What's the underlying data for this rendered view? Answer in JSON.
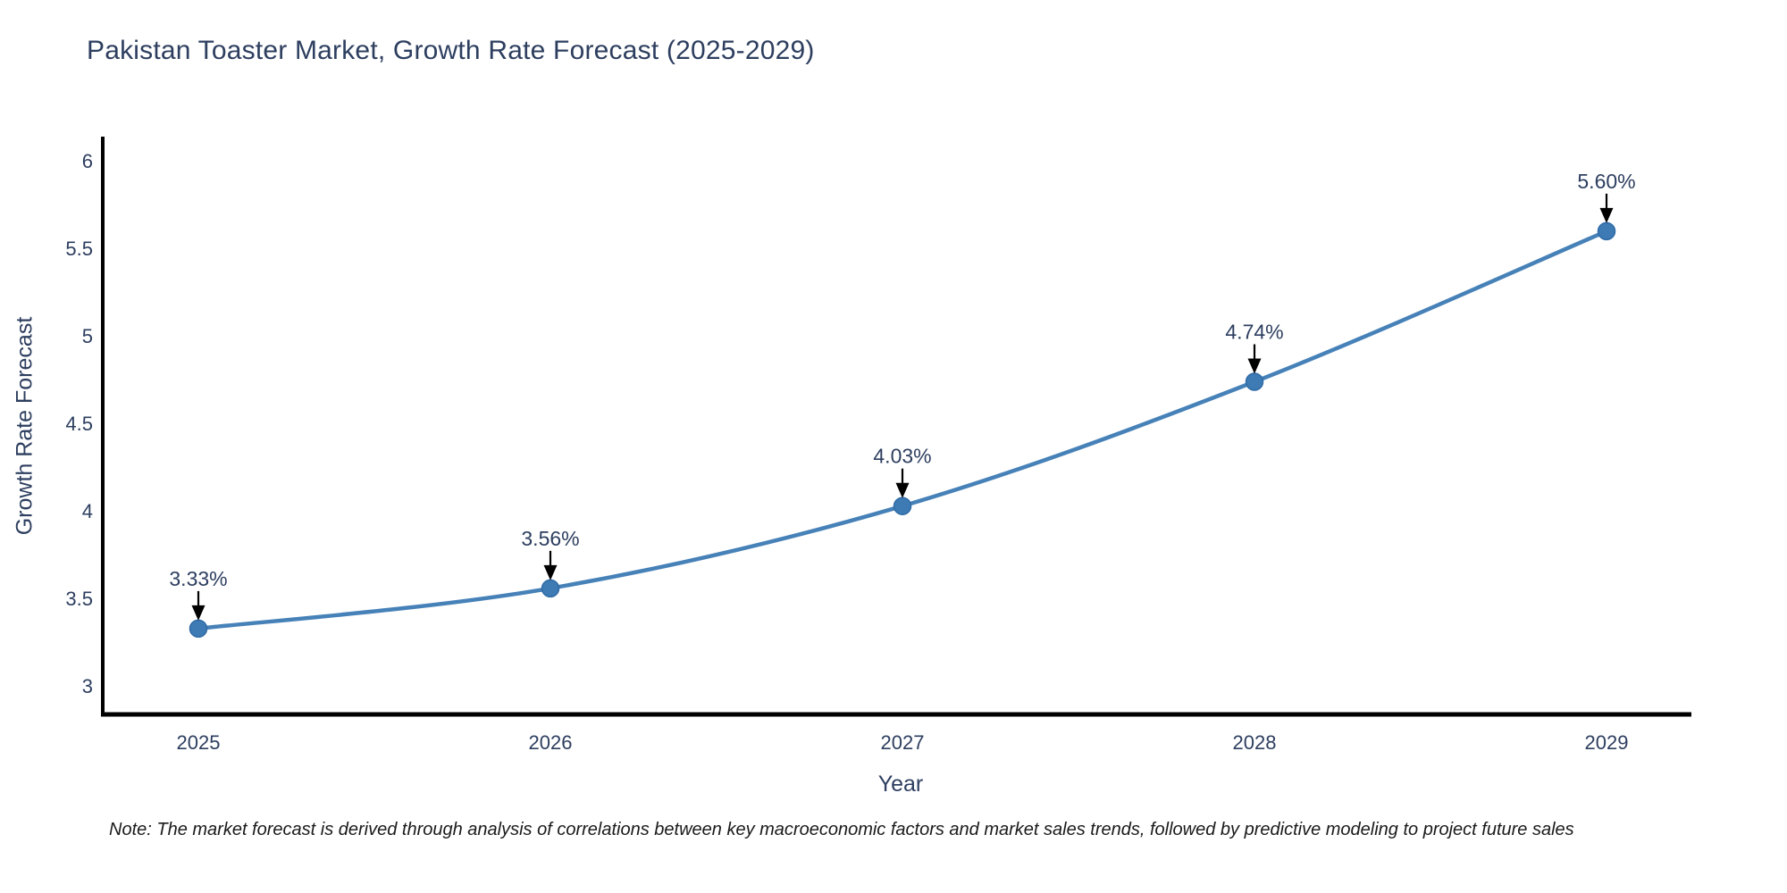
{
  "note": "Note: The market forecast is derived through analysis of correlations between key macroeconomic factors and market sales trends, followed by predictive modeling to project future sales",
  "chart_data": {
    "type": "line",
    "title": "Pakistan Toaster Market, Growth Rate Forecast (2025-2029)",
    "x": [
      "2025",
      "2026",
      "2027",
      "2028",
      "2029"
    ],
    "values": [
      3.33,
      3.56,
      4.03,
      4.74,
      5.6
    ],
    "point_labels": [
      "3.33%",
      "3.56%",
      "4.03%",
      "4.74%",
      "5.60%"
    ],
    "xlabel": "Year",
    "ylabel": "Growth Rate Forecast",
    "y_ticks": [
      "3",
      "3.5",
      "4",
      "4.5",
      "5",
      "5.5",
      "6"
    ],
    "y_tick_values": [
      3,
      3.5,
      4,
      4.5,
      5,
      5.5,
      6
    ],
    "ylim": [
      2.84,
      6.14
    ],
    "curve": "spline",
    "grid": false,
    "legend": "none",
    "annotations": "arrow-down-to-point",
    "colors": {
      "line": "#4681b8",
      "marker": "#3e7ab3",
      "marker_edge": "#2f6ba7",
      "axis": "#000000",
      "text": "#2d3e5f",
      "arrow": "#000000",
      "note_text": "#1a1a1a",
      "background": "#ffffff"
    }
  }
}
